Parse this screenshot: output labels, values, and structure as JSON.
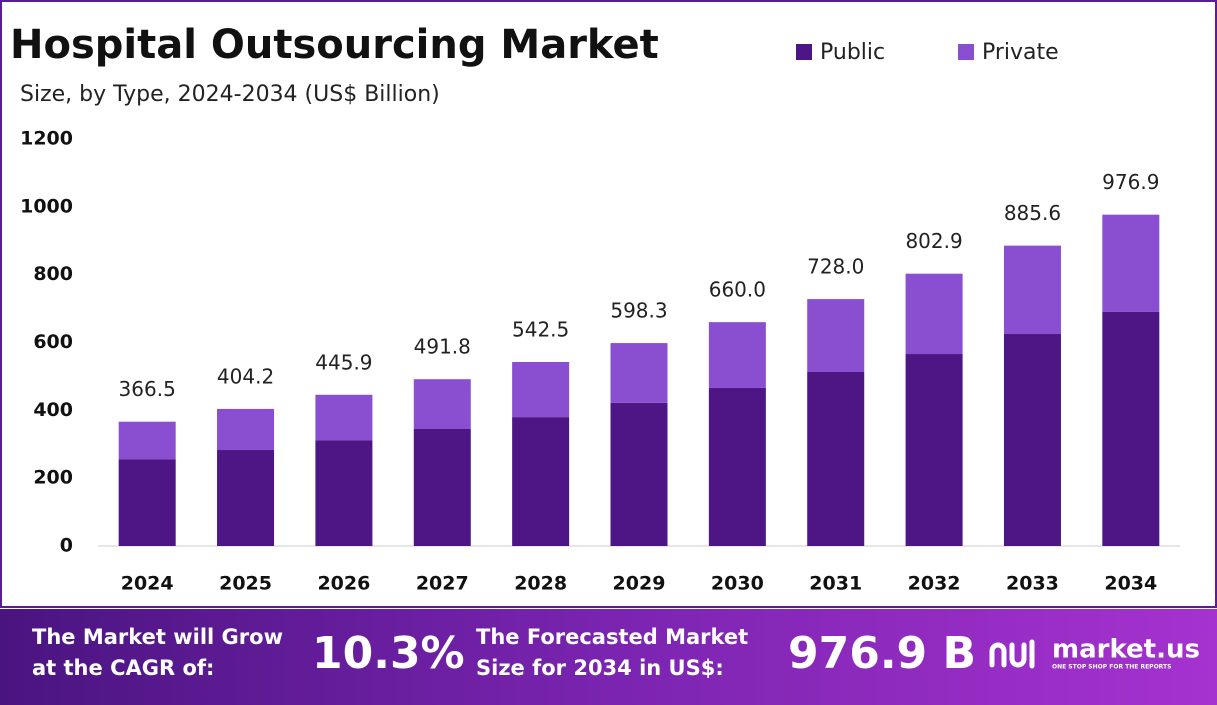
{
  "chart_data": {
    "type": "stacked_bar",
    "title": "Hospital Outsourcing Market",
    "subtitle": "Size, by Type, 2024-2034 (US$ Billion)",
    "categories": [
      "2024",
      "2025",
      "2026",
      "2027",
      "2028",
      "2029",
      "2030",
      "2031",
      "2032",
      "2033",
      "2034"
    ],
    "series": [
      {
        "name": "Public",
        "color": "#4e1685",
        "values": [
          256,
          283,
          312,
          345,
          380,
          422,
          466,
          513,
          566,
          625,
          690
        ]
      },
      {
        "name": "Private",
        "color": "#8a4fd1",
        "values": [
          110.5,
          121.2,
          133.9,
          146.8,
          162.5,
          176.3,
          194,
          215,
          236.9,
          260.6,
          286.9
        ]
      }
    ],
    "totals": [
      366.5,
      404.2,
      445.9,
      491.8,
      542.5,
      598.3,
      660.0,
      728.0,
      802.9,
      885.6,
      976.9
    ],
    "total_labels": [
      "366.5",
      "404.2",
      "445.9",
      "491.8",
      "542.5",
      "598.3",
      "660.0",
      "728.0",
      "802.9",
      "885.6",
      "976.9"
    ],
    "ylim": [
      0,
      1200
    ],
    "yticks": [
      0,
      200,
      400,
      600,
      800,
      1000,
      1200
    ],
    "grid": false,
    "legend": "top-right"
  },
  "footer": {
    "cagr_text": [
      "The Market will Grow",
      "at the CAGR of:"
    ],
    "cagr": "10.3%",
    "forecast_text": [
      "The Forecasted Market",
      "Size for 2034 in US$:"
    ],
    "forecast": "976.9 B",
    "brand": "market.us",
    "tagline": "ONE STOP SHOP FOR THE REPORTS"
  }
}
